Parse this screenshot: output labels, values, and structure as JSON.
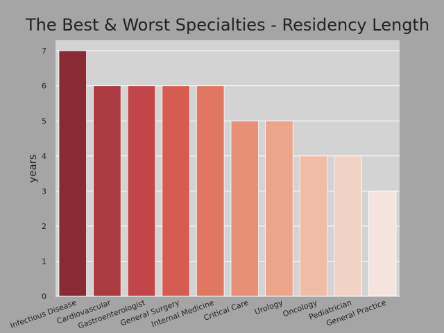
{
  "chart_data": {
    "type": "bar",
    "title": "The Best & Worst Specialties - Residency Length",
    "xlabel": "",
    "ylabel": "years",
    "categories": [
      "Infectious Disease",
      "Cardiovascular",
      "Gastroenterologist",
      "General Surgery",
      "Internal Medicine",
      "Critical Care",
      "Urology",
      "Oncology",
      "Pediatrician",
      "General Practice"
    ],
    "values": [
      7,
      6,
      6,
      6,
      6,
      5,
      5,
      4,
      4,
      3
    ],
    "ylim": [
      0,
      7.3
    ],
    "yticks": [
      0,
      1,
      2,
      3,
      4,
      5,
      6,
      7
    ],
    "grid": true,
    "colors": {
      "page_background": "#a5a5a5",
      "plot_background": "#d3d3d3",
      "grid": "#ffffff",
      "bars": [
        "#8a2a35",
        "#ab3a41",
        "#c24649",
        "#d65c51",
        "#e17762",
        "#e88f78",
        "#eca48d",
        "#efbca8",
        "#f1d3c6",
        "#f5e4dd"
      ]
    }
  }
}
